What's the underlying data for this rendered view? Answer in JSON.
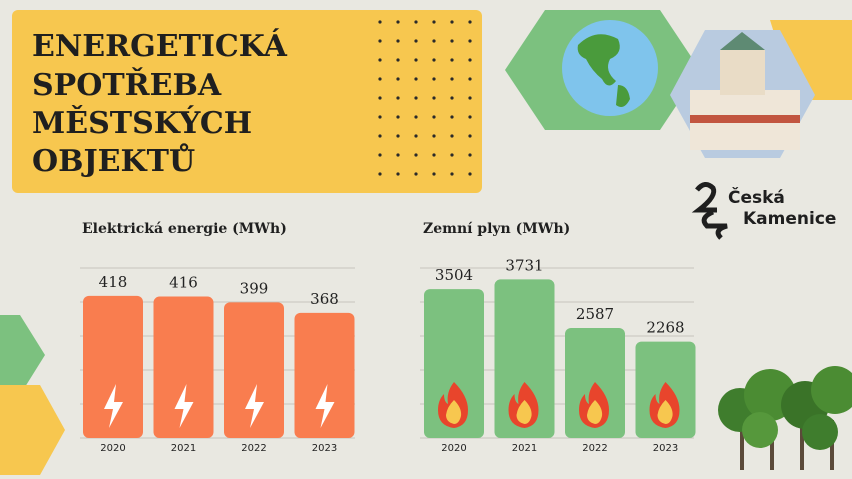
{
  "header": {
    "title_lines": [
      "ENERGETICKÁ",
      "SPOTŘEBA",
      "MĚSTSKÝCH",
      "OBJEKTŮ"
    ]
  },
  "logo": [
    "Česká",
    "Kamenice"
  ],
  "chart_data": [
    {
      "type": "bar",
      "title": "Elektrická energie (MWh)",
      "categories": [
        "2020",
        "2021",
        "2022",
        "2023"
      ],
      "values": [
        418,
        416,
        399,
        368
      ],
      "color": "#f97d4f",
      "ylim": [
        0,
        500
      ],
      "yticks": [
        0,
        100,
        200,
        300,
        400,
        500
      ],
      "grid": true
    },
    {
      "type": "bar",
      "title": "Zemní plyn (MWh)",
      "categories": [
        "2020",
        "2021",
        "2022",
        "2023"
      ],
      "values": [
        3504,
        3731,
        2587,
        2268
      ],
      "color": "#7cc17f",
      "ylim": [
        0,
        4000
      ],
      "yticks": [
        0,
        800,
        1600,
        2400,
        3200,
        4000
      ],
      "grid": true
    }
  ]
}
